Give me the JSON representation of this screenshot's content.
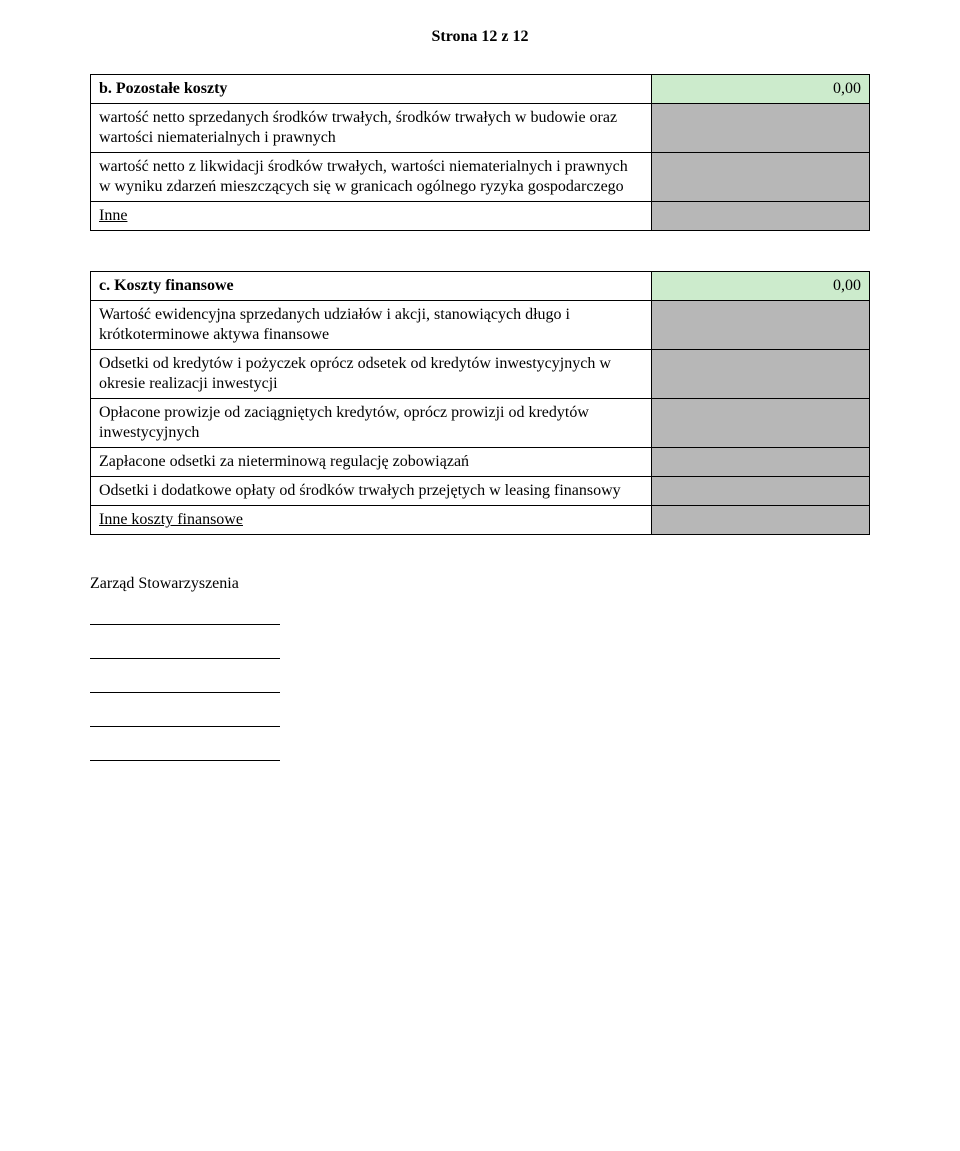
{
  "page_header": "Strona 12 z 12",
  "colors": {
    "header_value_bg": "#ccebcc",
    "value_bg": "#b7b7b7",
    "border": "#000000",
    "text": "#000000",
    "page_bg": "#ffffff"
  },
  "layout": {
    "label_col_width_pct": 72,
    "value_col_width_pct": 28,
    "font_family": "Times New Roman",
    "font_size_pt": 12
  },
  "table_b": {
    "header": {
      "label": "b. Pozostałe koszty",
      "value": "0,00"
    },
    "rows": [
      {
        "label": "wartość netto sprzedanych środków trwałych, środków trwałych w budowie oraz wartości niematerialnych i prawnych",
        "value": ""
      },
      {
        "label": "wartość netto z likwidacji środków trwałych, wartości niematerialnych i prawnych w wyniku zdarzeń mieszczących się w granicach ogólnego ryzyka gospodarczego",
        "value": ""
      },
      {
        "label": "Inne",
        "value": "",
        "underline": true
      }
    ]
  },
  "table_c": {
    "header": {
      "label": "c. Koszty finansowe",
      "value": "0,00"
    },
    "rows": [
      {
        "label": "Wartość ewidencyjna sprzedanych udziałów i akcji, stanowiących długo i krótkoterminowe aktywa finansowe",
        "value": ""
      },
      {
        "label": "Odsetki od kredytów i pożyczek oprócz odsetek od kredytów inwestycyjnych w okresie realizacji inwestycji",
        "value": ""
      },
      {
        "label": "Opłacone prowizje od zaciągniętych kredytów, oprócz prowizji od kredytów inwestycyjnych",
        "value": ""
      },
      {
        "label": "Zapłacone odsetki za nieterminową regulację zobowiązań",
        "value": ""
      },
      {
        "label": "Odsetki i dodatkowe opłaty od środków trwałych przejętych w leasing finansowy",
        "value": ""
      },
      {
        "label": "Inne koszty finansowe",
        "value": "",
        "underline": true
      }
    ]
  },
  "sign": {
    "title": "Zarząd Stowarzyszenia",
    "line_count": 5
  }
}
